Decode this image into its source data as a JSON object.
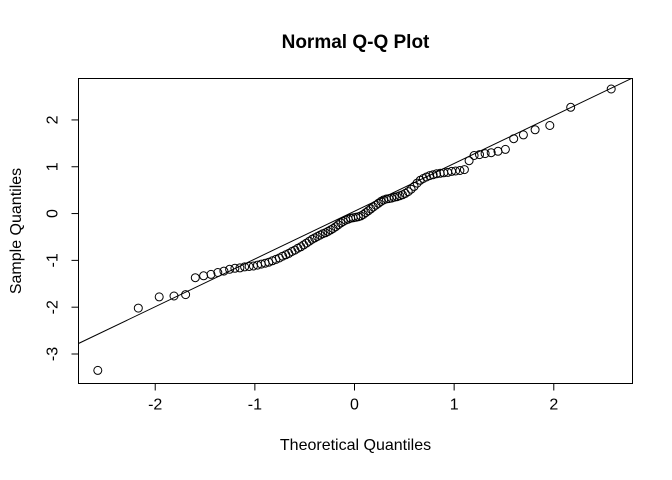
{
  "chart_data": {
    "type": "scatter",
    "title": "Normal Q-Q Plot",
    "xlabel": "Theoretical Quantiles",
    "ylabel": "Sample Quantiles",
    "xlim": [
      -2.77,
      2.79
    ],
    "ylim": [
      -3.63,
      2.885
    ],
    "x_ticks": [
      -2,
      -1,
      0,
      1,
      2
    ],
    "y_ticks": [
      -3,
      -2,
      -1,
      0,
      1,
      2
    ],
    "grid": false,
    "legend": "none",
    "marker": "open-circle",
    "colors": {
      "foreground": "#000000",
      "background": "#ffffff"
    },
    "n_points": 100,
    "points": {
      "x": [
        -2.576,
        -2.17,
        -1.96,
        -1.812,
        -1.695,
        -1.598,
        -1.514,
        -1.44,
        -1.372,
        -1.311,
        -1.254,
        -1.2,
        -1.15,
        -1.103,
        -1.058,
        -1.015,
        -0.974,
        -0.935,
        -0.896,
        -0.86,
        -0.824,
        -0.789,
        -0.755,
        -0.722,
        -0.69,
        -0.659,
        -0.628,
        -0.598,
        -0.568,
        -0.539,
        -0.51,
        -0.482,
        -0.454,
        -0.426,
        -0.399,
        -0.372,
        -0.345,
        -0.319,
        -0.292,
        -0.266,
        -0.24,
        -0.215,
        -0.189,
        -0.164,
        -0.138,
        -0.113,
        -0.088,
        -0.063,
        -0.038,
        -0.013,
        0.013,
        0.038,
        0.063,
        0.088,
        0.113,
        0.138,
        0.164,
        0.189,
        0.215,
        0.24,
        0.266,
        0.292,
        0.319,
        0.345,
        0.372,
        0.399,
        0.426,
        0.454,
        0.482,
        0.51,
        0.539,
        0.568,
        0.598,
        0.628,
        0.659,
        0.69,
        0.722,
        0.755,
        0.789,
        0.824,
        0.86,
        0.896,
        0.935,
        0.974,
        1.015,
        1.058,
        1.103,
        1.15,
        1.2,
        1.254,
        1.311,
        1.372,
        1.44,
        1.514,
        1.598,
        1.695,
        1.812,
        1.96,
        2.17,
        2.576
      ],
      "y": [
        -3.35,
        -2.02,
        -1.78,
        -1.76,
        -1.73,
        -1.37,
        -1.33,
        -1.3,
        -1.26,
        -1.23,
        -1.19,
        -1.17,
        -1.16,
        -1.14,
        -1.13,
        -1.12,
        -1.1,
        -1.08,
        -1.06,
        -1.04,
        -1.01,
        -0.98,
        -0.95,
        -0.91,
        -0.88,
        -0.85,
        -0.81,
        -0.78,
        -0.74,
        -0.71,
        -0.67,
        -0.63,
        -0.59,
        -0.55,
        -0.52,
        -0.49,
        -0.46,
        -0.43,
        -0.41,
        -0.38,
        -0.35,
        -0.32,
        -0.28,
        -0.24,
        -0.2,
        -0.17,
        -0.14,
        -0.12,
        -0.1,
        -0.09,
        -0.08,
        -0.07,
        -0.05,
        -0.02,
        0.02,
        0.06,
        0.1,
        0.14,
        0.18,
        0.22,
        0.26,
        0.29,
        0.31,
        0.32,
        0.33,
        0.35,
        0.36,
        0.38,
        0.4,
        0.43,
        0.47,
        0.52,
        0.58,
        0.65,
        0.71,
        0.75,
        0.78,
        0.81,
        0.83,
        0.85,
        0.86,
        0.87,
        0.88,
        0.9,
        0.91,
        0.92,
        0.94,
        1.13,
        1.24,
        1.26,
        1.28,
        1.3,
        1.33,
        1.37,
        1.6,
        1.68,
        1.79,
        1.88,
        2.27,
        2.66
      ]
    },
    "reference_line": {
      "slope": 1.02,
      "intercept": 0.05
    }
  }
}
